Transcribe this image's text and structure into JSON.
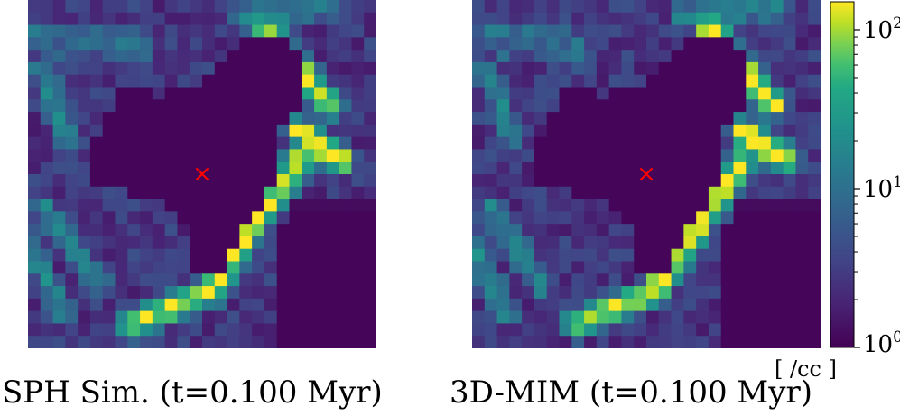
{
  "chart_data": {
    "type": "heatmap",
    "grid": 28,
    "panels": [
      {
        "name": "left",
        "caption": "SPH Sim. (t=0.100 Myr)"
      },
      {
        "name": "right",
        "caption": "3D-MIM (t=0.100 Myr)"
      }
    ],
    "marker": {
      "symbol": "×",
      "color": "#ff0000",
      "x": 14,
      "y": 14
    },
    "colorbar": {
      "cmap": "viridis",
      "scale": "log",
      "range": [
        1,
        150
      ],
      "ticks": [
        {
          "base": "10",
          "exp": "0",
          "value": 1
        },
        {
          "base": "10",
          "exp": "1",
          "value": 10
        },
        {
          "base": "10",
          "exp": "2",
          "value": 100
        }
      ],
      "unit": "[ /cc ]"
    }
  }
}
